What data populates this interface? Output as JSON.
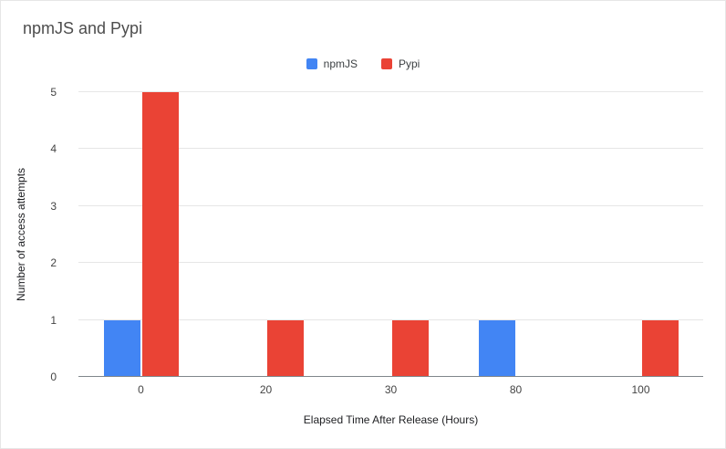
{
  "chart_data": {
    "type": "bar",
    "title": "npmJS and Pypi",
    "xlabel": "Elapsed Time After Release (Hours)",
    "ylabel": "Number of access attempts",
    "categories": [
      "0",
      "20",
      "30",
      "80",
      "100"
    ],
    "series": [
      {
        "name": "npmJS",
        "color": "#4285f4",
        "values": [
          1,
          0,
          0,
          1,
          0
        ]
      },
      {
        "name": "Pypi",
        "color": "#ea4335",
        "values": [
          5,
          1,
          1,
          0,
          1
        ]
      }
    ],
    "ylim": [
      0,
      5
    ],
    "yticks": [
      0,
      1,
      2,
      3,
      4,
      5
    ],
    "grid": true,
    "legend_position": "top-center",
    "colors": {
      "npmJS": "#4285f4",
      "Pypi": "#ea4335"
    }
  }
}
